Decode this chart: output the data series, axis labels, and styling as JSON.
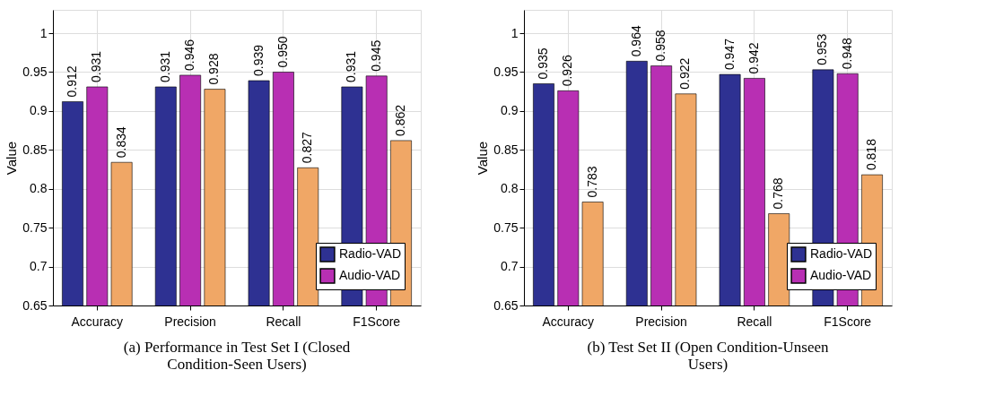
{
  "chart_data": [
    {
      "type": "bar",
      "title": "(a)  Performance in Test Set I (Closed Condition-Seen Users)",
      "ylabel": "Value",
      "categories": [
        "Accuracy",
        "Precision",
        "Recall",
        "F1Score"
      ],
      "series": [
        {
          "name": "Radio-VAD",
          "color": "#2e3192",
          "values": [
            0.912,
            0.931,
            0.939,
            0.931
          ],
          "value_labels": [
            "0.912",
            "0.931",
            "0.939",
            "0.931"
          ]
        },
        {
          "name": "Audio-VAD",
          "color": "#b82fb3",
          "values": [
            0.931,
            0.946,
            0.95,
            0.945
          ],
          "value_labels": [
            "0.931",
            "0.946",
            "0.950",
            "0.945"
          ]
        },
        {
          "color": "#f0a766",
          "values": [
            0.834,
            0.928,
            0.827,
            0.862
          ],
          "value_labels": [
            "0.834",
            "0.928",
            "0.827",
            "0.862"
          ]
        }
      ],
      "ylim": [
        0.65,
        1.03
      ],
      "yticks": [
        0.65,
        0.7,
        0.75,
        0.8,
        0.85,
        0.9,
        0.95,
        1
      ],
      "grid": true,
      "legend": "bottom right"
    },
    {
      "type": "bar",
      "title": "(b) Test Set II (Open Condition-Unseen Users)",
      "ylabel": "Value",
      "categories": [
        "Accuracy",
        "Precision",
        "Recall",
        "F1Score"
      ],
      "series": [
        {
          "name": "Radio-VAD",
          "color": "#2e3192",
          "values": [
            0.935,
            0.964,
            0.947,
            0.953
          ],
          "value_labels": [
            "0.935",
            "0.964",
            "0.947",
            "0.953"
          ]
        },
        {
          "name": "Audio-VAD",
          "color": "#b82fb3",
          "values": [
            0.926,
            0.958,
            0.942,
            0.948
          ],
          "value_labels": [
            "0.926",
            "0.958",
            "0.942",
            "0.948"
          ]
        },
        {
          "color": "#f0a766",
          "values": [
            0.783,
            0.922,
            0.768,
            0.818
          ],
          "value_labels": [
            "0.783",
            "0.922",
            "0.768",
            "0.818"
          ]
        }
      ],
      "ylim": [
        0.65,
        1.03
      ],
      "yticks": [
        0.65,
        0.7,
        0.75,
        0.8,
        0.85,
        0.9,
        0.95,
        1
      ],
      "grid": true,
      "legend": "bottom right"
    }
  ]
}
